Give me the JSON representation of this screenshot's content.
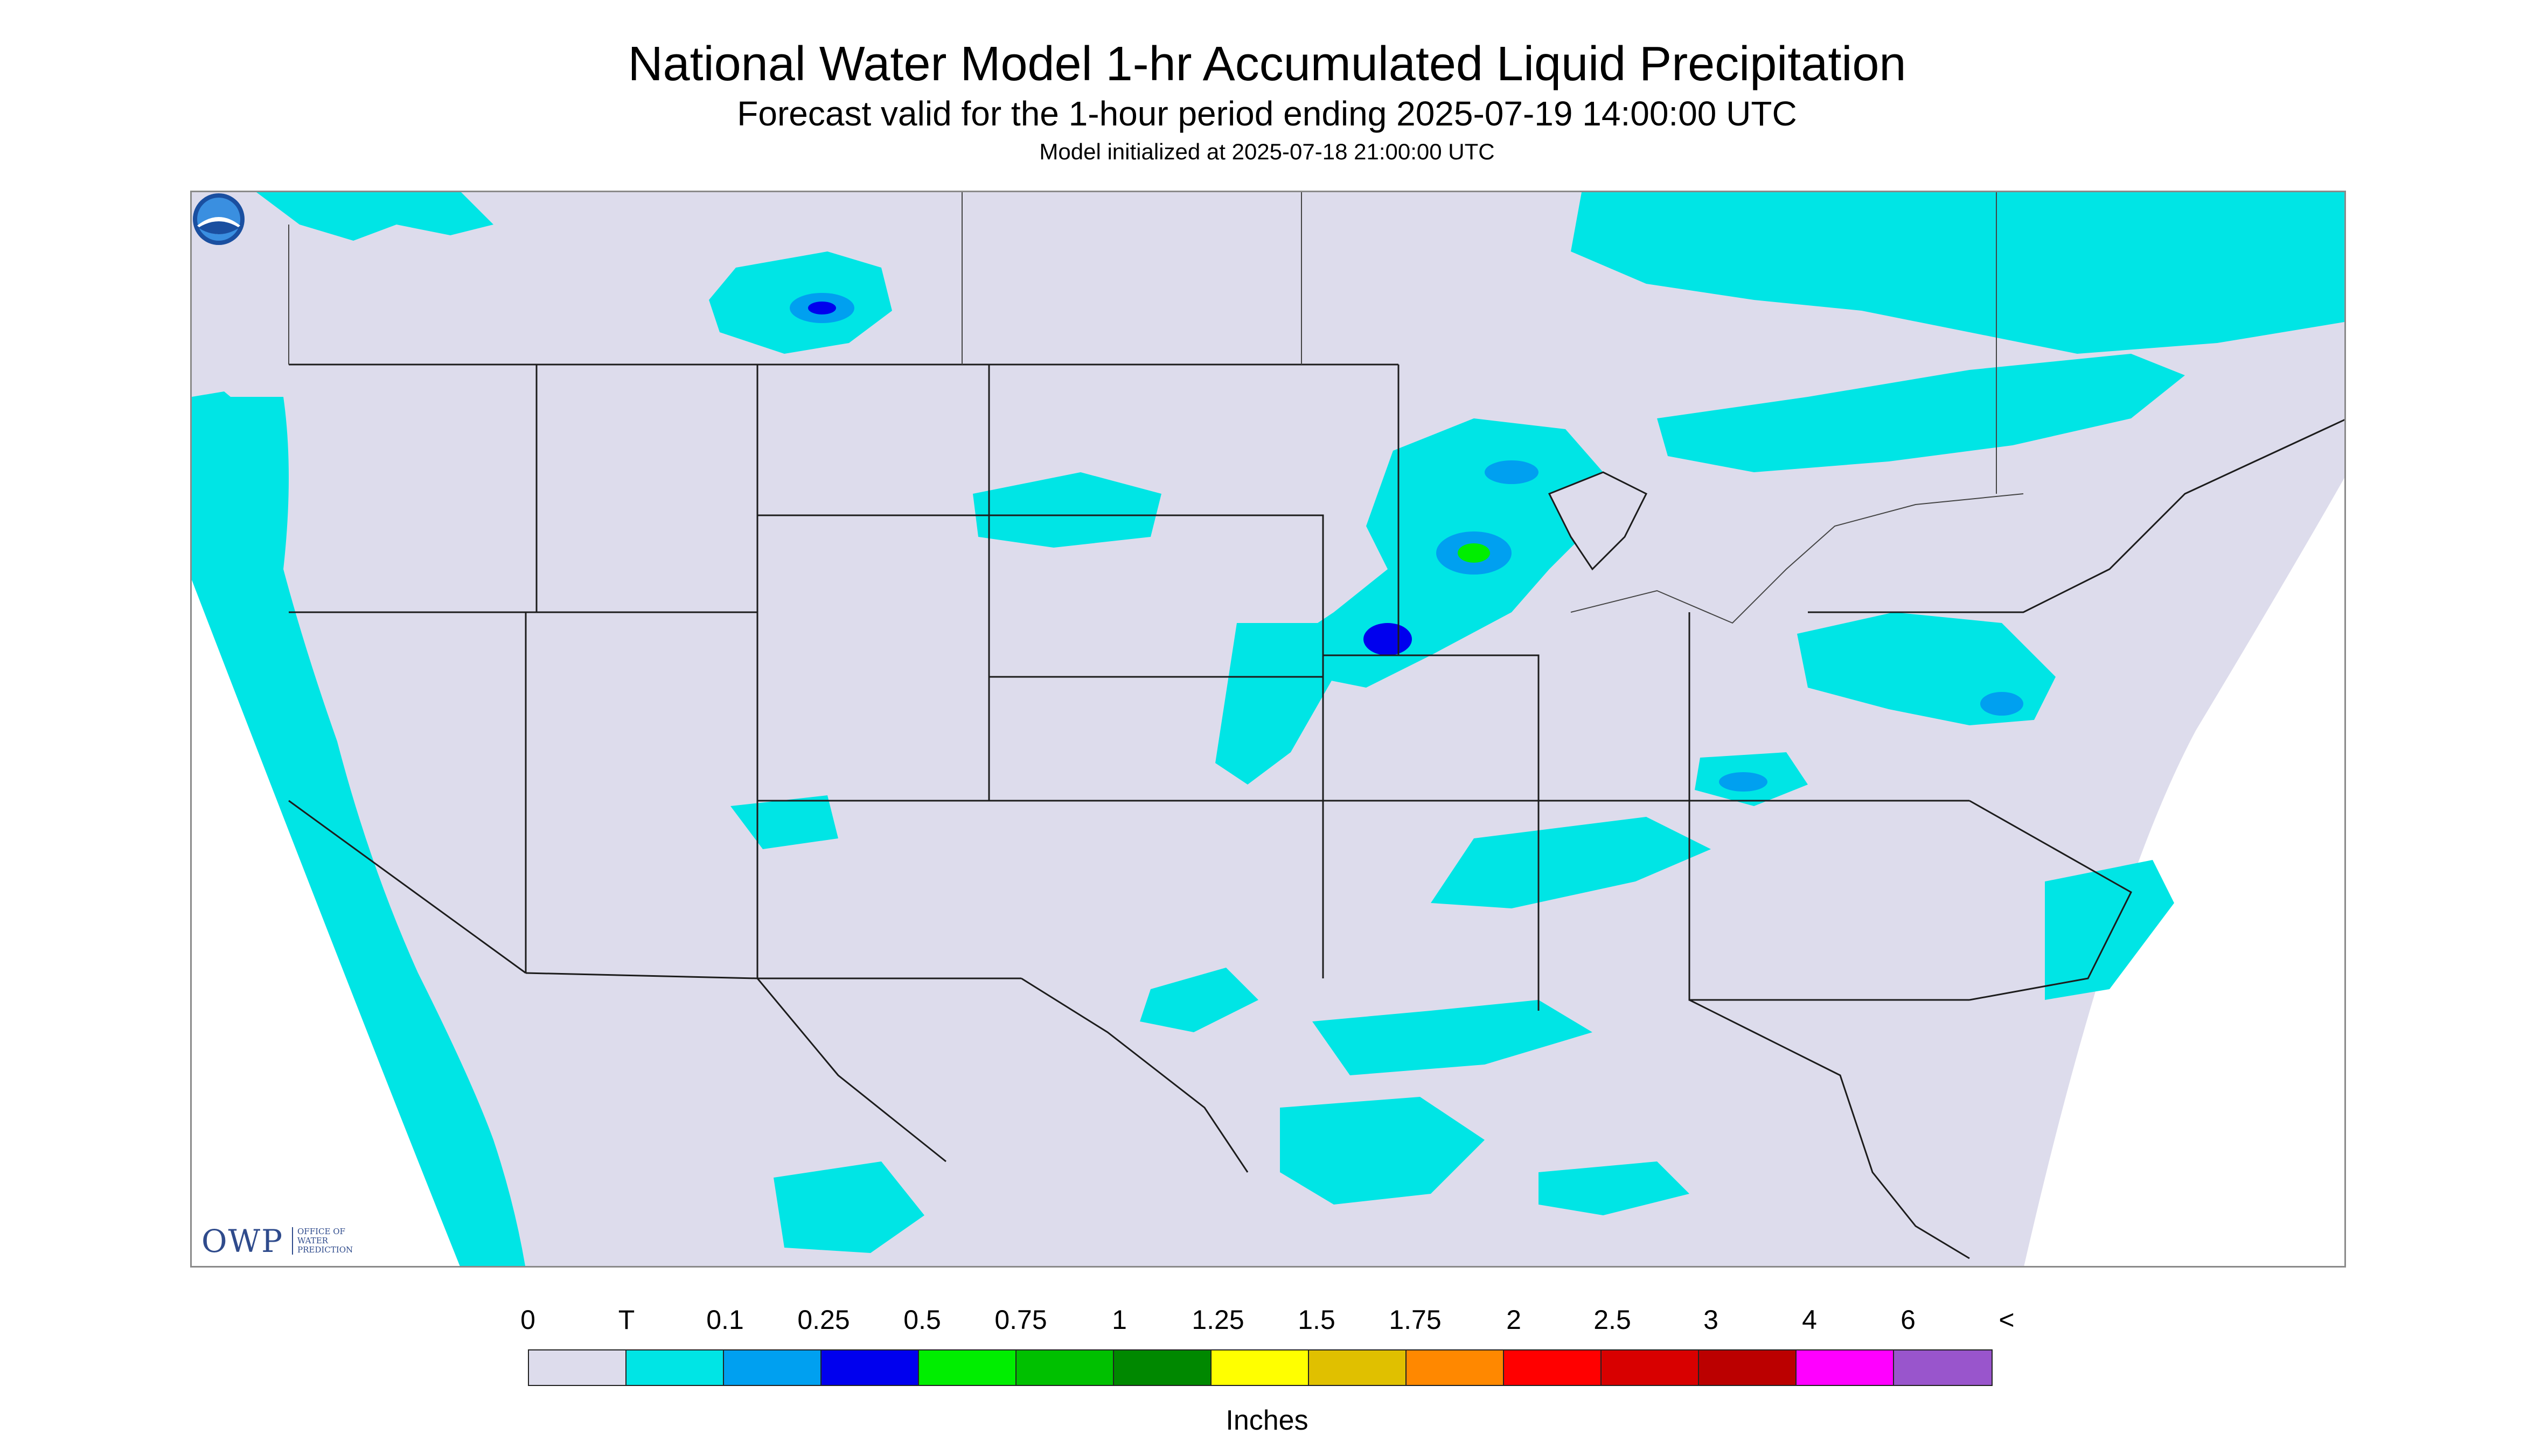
{
  "header": {
    "title": "National Water Model 1-hr Accumulated Liquid Precipitation",
    "subtitle": "Forecast valid for the 1-hour period ending 2025-07-19 14:00:00 UTC",
    "init_line": "Model initialized at 2025-07-18 21:00:00 UTC"
  },
  "map": {
    "background_color": "#dddcec",
    "precip_colors": {
      "trace": "#00e5e5",
      "light": "#00a0f0",
      "moderate": "#0000ee",
      "heavy": "#00ee00",
      "very_heavy": "#00c000"
    }
  },
  "logos": {
    "owp": "OWP",
    "owp_subtitle": [
      "OFFICE OF",
      "WATER",
      "PREDICTION"
    ],
    "noaa": "NOAA"
  },
  "legend": {
    "labels": [
      "0",
      "T",
      "0.1",
      "0.25",
      "0.5",
      "0.75",
      "1",
      "1.25",
      "1.5",
      "1.75",
      "2",
      "2.5",
      "3",
      "4",
      "6",
      "<"
    ],
    "colors": [
      "#dddcec",
      "#00e5e5",
      "#00a0f0",
      "#0000ee",
      "#00ee00",
      "#00c000",
      "#008800",
      "#ffff00",
      "#e0c000",
      "#ff8800",
      "#ff0000",
      "#d80000",
      "#bb0000",
      "#ff00ff",
      "#9955cc"
    ],
    "units": "Inches"
  }
}
